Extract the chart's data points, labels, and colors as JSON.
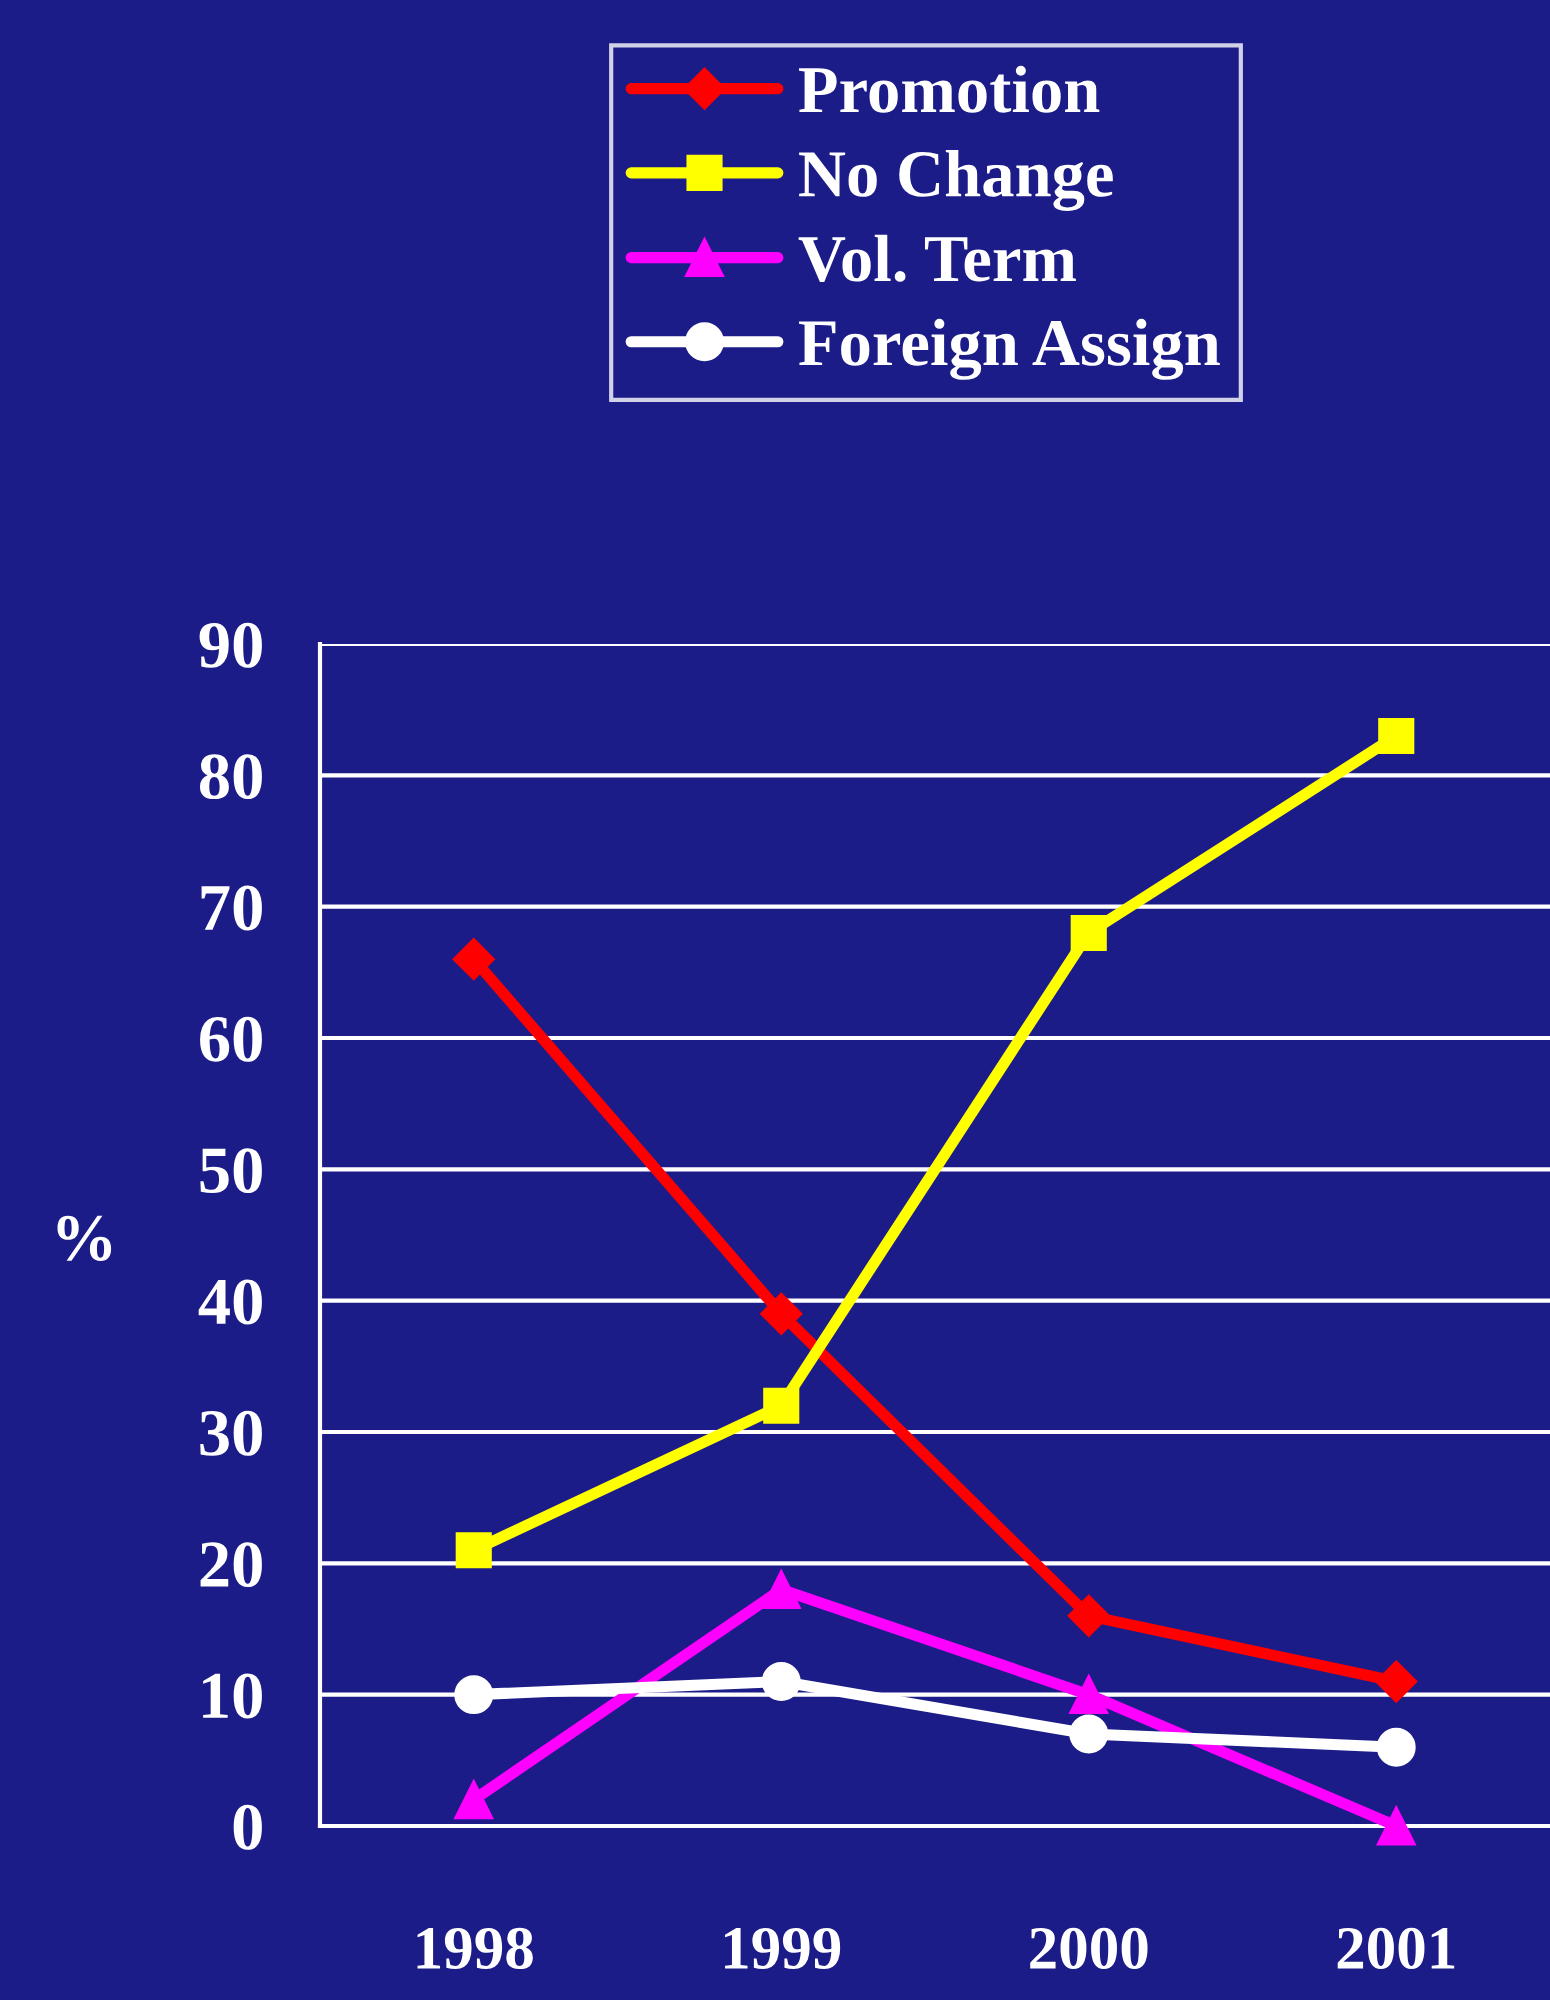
{
  "chart_data": {
    "type": "line",
    "ylabel": "%",
    "categories": [
      "1998",
      "1999",
      "2000",
      "2001"
    ],
    "series": [
      {
        "name": "Promotion",
        "color": "#ff0000",
        "marker": "diamond",
        "values": [
          66,
          39,
          16,
          11
        ]
      },
      {
        "name": "No Change",
        "color": "#ffff00",
        "marker": "square",
        "values": [
          21,
          32,
          68,
          83
        ]
      },
      {
        "name": "Vol. Term",
        "color": "#ff00ff",
        "marker": "triangle",
        "values": [
          2,
          18,
          10,
          0
        ]
      },
      {
        "name": "Foreign Assign",
        "color": "#ffffff",
        "marker": "circle",
        "values": [
          10,
          11,
          7,
          6
        ]
      }
    ],
    "ylim": [
      0,
      90
    ],
    "yticks": [
      0,
      10,
      20,
      30,
      40,
      50,
      60,
      70,
      80,
      90
    ],
    "grid": "y",
    "legend": "top",
    "line_style": "solid"
  }
}
